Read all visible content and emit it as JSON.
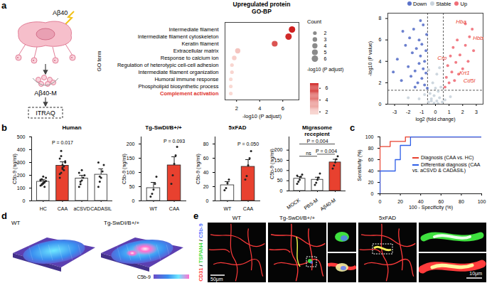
{
  "panel_labels": [
    "a",
    "b",
    "c",
    "d",
    "e"
  ],
  "schematic": {
    "stimulus": "Aβ40",
    "product": "Aβ40-M",
    "method": "ITRAQ"
  },
  "chart_data": [
    {
      "type": "dot",
      "title": "Upregulated protein",
      "subtitle": "GO-BP",
      "categories": [
        "Intermediate filament",
        "Intermediate filament cytoskeleton",
        "Keratin filament",
        "Extracellular matrix",
        "Response to calcium ion",
        "Regulation of heterotypic cell-cell adhesion",
        "Intermediate filament organization",
        "Humoral immune response",
        "Phospholipid biosynthetic process",
        "Complement activation"
      ],
      "values": [
        6.8,
        6.5,
        5.3,
        2.1,
        1.8,
        1.6,
        1.6,
        1.5,
        1.5,
        1.5
      ],
      "sizes": [
        6,
        6,
        5,
        4,
        3,
        2,
        2,
        2,
        2,
        2
      ],
      "x_label": "-log10 (P adjust)",
      "y_label": "GO term",
      "xlim": [
        1,
        7.4
      ],
      "xticks": [
        2,
        4,
        6
      ],
      "size_legend": {
        "label": "Count",
        "ticks": [
          2,
          3,
          4,
          5,
          6
        ]
      },
      "colorbar": {
        "label": "-log10 (P adjust)",
        "range": [
          1.5,
          6.8
        ],
        "ticks": [
          6,
          4,
          2
        ],
        "colors": [
          "#f9d9d3",
          "#cf1f1f"
        ]
      },
      "annotations": [
        {
          "text": "Complement activation",
          "color": "#e0302a"
        }
      ]
    },
    {
      "type": "scatter",
      "x_label": "log2 (fold change)",
      "y_label": "-log10 (P value)",
      "xlim": [
        -3.5,
        3.5
      ],
      "xticks": [
        -3,
        -2,
        -1,
        0,
        1,
        2,
        3
      ],
      "ylim": [
        0,
        8.5
      ],
      "yticks": [
        0,
        2,
        4,
        6,
        8
      ],
      "reference_lines": {
        "x": [
          -0.58,
          0.58
        ],
        "y": [
          1.3
        ]
      },
      "series": [
        {
          "name": "Down",
          "color": "#5b72c9",
          "x": [
            -3.1,
            -2.8,
            -2.5,
            -2.2,
            -2.0,
            -1.9,
            -1.8,
            -1.7,
            -1.6,
            -1.5,
            -1.4,
            -1.3,
            -1.2,
            -1.2,
            -1.1,
            -1.0,
            -1.0,
            -0.9,
            -0.9,
            -0.8,
            -0.8,
            -0.7,
            -0.7,
            -0.65,
            -0.6,
            -1.5,
            -2.4,
            -1.1
          ],
          "values": [
            3.0,
            4.2,
            2.2,
            5.5,
            3.5,
            6.2,
            2.6,
            4.8,
            7.0,
            3.1,
            5.2,
            2.0,
            6.0,
            3.8,
            4.5,
            2.4,
            5.6,
            3.3,
            7.4,
            1.8,
            4.0,
            2.9,
            5.0,
            6.5,
            1.5,
            1.6,
            6.8,
            7.8
          ]
        },
        {
          "name": "Stable",
          "color": "#c9d3dc",
          "x": [
            -0.5,
            -0.3,
            -0.1,
            0.1,
            0.3,
            0.5,
            -0.4,
            0.2,
            -0.2,
            0.1,
            0.4,
            -0.5,
            0.3,
            -0.1,
            0.0,
            -1.2,
            1.1,
            -0.8,
            0.7,
            -2.0,
            0.2,
            -0.3
          ],
          "values": [
            0.2,
            0.5,
            0.1,
            0.3,
            0.6,
            0.2,
            1.0,
            1.2,
            2.0,
            2.8,
            1.6,
            3.2,
            3.4,
            0.8,
            1.5,
            0.5,
            0.7,
            0.9,
            0.4,
            0.6,
            0.05,
            0.3
          ]
        },
        {
          "name": "Up",
          "color": "#f06e78",
          "x": [
            0.7,
            0.8,
            0.9,
            1.0,
            1.1,
            1.2,
            1.3,
            1.4,
            1.5,
            1.6,
            1.7,
            1.8,
            2.0,
            2.2,
            2.4,
            2.5,
            2.7,
            2.8,
            2.2
          ],
          "values": [
            1.6,
            2.5,
            3.6,
            2.0,
            4.5,
            3.0,
            5.3,
            2.2,
            3.9,
            6.0,
            2.8,
            4.6,
            3.3,
            5.5,
            4.0,
            6.3,
            7.0,
            5.0,
            7.5
          ]
        }
      ],
      "annotations": [
        {
          "text": "Hba",
          "x": 1.5,
          "y": 7.7
        },
        {
          "text": "Hbb",
          "x": 2.75,
          "y": 6.2
        },
        {
          "text": "Crp",
          "x": 0.15,
          "y": 4.3
        },
        {
          "text": "Krt1",
          "x": 1.75,
          "y": 2.9
        },
        {
          "text": "Cd5l",
          "x": 2.05,
          "y": 2.2
        }
      ]
    },
    {
      "type": "bar",
      "title": "Human",
      "y_label": "C5b-9 (ng/ml)",
      "categories": [
        "HC",
        "CAA",
        "aCSVD",
        "CADASIL"
      ],
      "values": [
        150,
        275,
        175,
        205
      ],
      "errors": [
        15,
        30,
        25,
        45
      ],
      "colors": [
        "#ffffff",
        "#e8412f",
        "#ffffff",
        "#ffffff"
      ],
      "points": [
        [
          120,
          130,
          140,
          150,
          155,
          160,
          170,
          135,
          145,
          180,
          165,
          125,
          190,
          110
        ],
        [
          180,
          220,
          250,
          270,
          300,
          330,
          390,
          260,
          240,
          310,
          210,
          350,
          280
        ],
        [
          110,
          130,
          160,
          180,
          200,
          220,
          150,
          240
        ],
        [
          110,
          150,
          180,
          230,
          280,
          300,
          190
        ]
      ],
      "ylim": [
        0,
        500
      ],
      "yticks": [
        0,
        100,
        200,
        300,
        400,
        500
      ],
      "annotations": [
        {
          "text": "P = 0.017",
          "from": "CAA",
          "to": "CAA",
          "y": 430
        }
      ]
    },
    {
      "type": "bar",
      "title": "Tg-SwDI/B+/+",
      "y_label": "C5b-9 (ng/ml)",
      "categories": [
        "WT",
        "CAA"
      ],
      "values": [
        45,
        125
      ],
      "errors": [
        20,
        30
      ],
      "colors": [
        "#ffffff",
        "#e8412f"
      ],
      "points": [
        [
          15,
          25,
          40,
          60,
          85
        ],
        [
          60,
          90,
          130,
          160,
          190
        ]
      ],
      "ylim": [
        0,
        225
      ],
      "yticks": [
        0,
        50,
        100,
        150,
        200
      ],
      "annotations": [
        {
          "text": "P = 0.093",
          "from": "CAA",
          "to": "CAA",
          "y": 200
        }
      ]
    },
    {
      "type": "bar",
      "title": "5xFAD",
      "y_label": "C5b-9 (ng/ml)",
      "categories": [
        "WT",
        "CAA"
      ],
      "values": [
        22,
        48
      ],
      "errors": [
        5,
        10
      ],
      "colors": [
        "#ffffff",
        "#e8412f"
      ],
      "points": [
        [
          15,
          18,
          25,
          30
        ],
        [
          30,
          35,
          50,
          60,
          70
        ]
      ],
      "ylim": [
        0,
        90
      ],
      "yticks": [
        0,
        20,
        40,
        60,
        80
      ],
      "annotations": [
        {
          "text": "P = 0.050",
          "from": "CAA",
          "to": "CAA",
          "y": 76
        }
      ]
    },
    {
      "type": "bar",
      "title": "Migrasome recepient",
      "y_label": "C5b-9 (ng/ml)",
      "categories": [
        "MOCK",
        "PBS-M",
        "Aβ40-M"
      ],
      "values": [
        60,
        55,
        140
      ],
      "errors": [
        10,
        12,
        15
      ],
      "colors": [
        "#ffffff",
        "#ffffff",
        "#e8412f"
      ],
      "points": [
        [
          35,
          45,
          55,
          70,
          80,
          75
        ],
        [
          30,
          40,
          55,
          65,
          85
        ],
        [
          110,
          125,
          140,
          155,
          170
        ]
      ],
      "ylim": [
        0,
        265
      ],
      "yticks": [
        0,
        50,
        100,
        150,
        200
      ],
      "annotations": [
        {
          "text": "ns",
          "from": "MOCK",
          "to": "PBS-M",
          "y": 170
        },
        {
          "text": "P = 0.004",
          "from": "PBS-M",
          "to": "Aβ40-M",
          "y": 180
        },
        {
          "text": "P = 0.004",
          "from": "MOCK",
          "to": "Aβ40-M",
          "y": 230
        }
      ]
    },
    {
      "type": "line",
      "x_label": "100 - Specificity (%)",
      "y_label": "Sensitivity (%)",
      "xlim": [
        0,
        100
      ],
      "xticks": [
        0,
        20,
        40,
        60,
        80,
        100
      ],
      "ylim": [
        0,
        100
      ],
      "yticks": [
        0,
        20,
        40,
        60,
        80,
        100
      ],
      "series": [
        {
          "name": "Diagnosis (CAA vs. HC)",
          "color": "#e8412f",
          "x": [
            0,
            0,
            10,
            10,
            25,
            25,
            100
          ],
          "values": [
            0,
            83,
            83,
            92,
            92,
            100,
            100
          ]
        },
        {
          "name": "Differential diagnosis (CAA vs. aCSVD & CADASIL)",
          "color": "#2f5fe8",
          "x": [
            0,
            0,
            15,
            15,
            20,
            20,
            30,
            30,
            100
          ],
          "values": [
            0,
            40,
            40,
            60,
            60,
            85,
            85,
            100,
            100
          ]
        }
      ]
    }
  ],
  "images": {
    "d": {
      "labels": [
        "WT",
        "Tg-SwDI/B+/+"
      ],
      "colorbar_label": "C5b-9"
    },
    "e": {
      "labels": [
        "WT",
        "Tg-SwDI/B+/+",
        "5xFAD"
      ],
      "channel_label": "CD31 / TSPAN4 / C5b-9",
      "channel_colors": [
        "#ff3b3b",
        "#3ee03e",
        "#5a78ff"
      ],
      "scale_bars": [
        "50μm",
        "10μm"
      ]
    }
  }
}
